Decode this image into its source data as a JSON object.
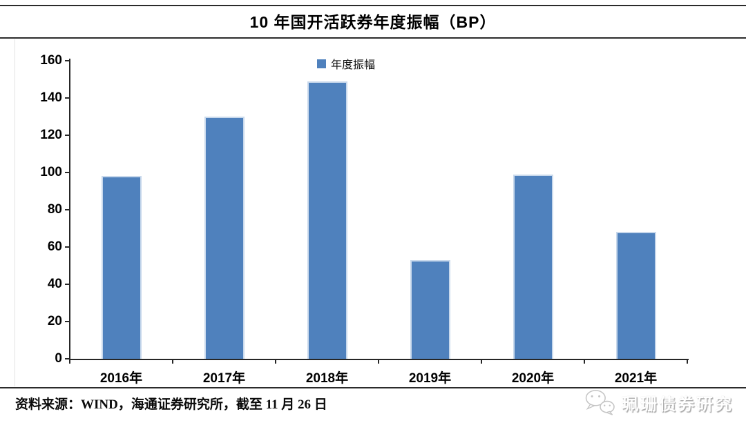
{
  "header": {
    "title": "10 年国开活跃券年度振幅（BP）"
  },
  "chart_data": {
    "type": "bar",
    "title": "10 年国开活跃券年度振幅（BP）",
    "series_name": "年度振幅",
    "categories": [
      "2016年",
      "2017年",
      "2018年",
      "2019年",
      "2020年",
      "2021年"
    ],
    "values": [
      98,
      130,
      149,
      53,
      99,
      68
    ],
    "xlabel": "",
    "ylabel": "",
    "ylim": [
      0,
      160
    ],
    "ytick_step": 20,
    "grid": false,
    "legend_position": "top-center",
    "bar_color": "#4f81bd"
  },
  "footer": {
    "source": "资料来源：WIND，海通证券研究所，截至 11 月 26 日"
  },
  "watermark": {
    "icon": "wechat-icon",
    "text": "珮珊债券研究"
  },
  "colors": {
    "bar": "#4f81bd",
    "bar_border": "#c9d9ec",
    "axis": "#262626",
    "header_line": "#2b2b2b"
  }
}
